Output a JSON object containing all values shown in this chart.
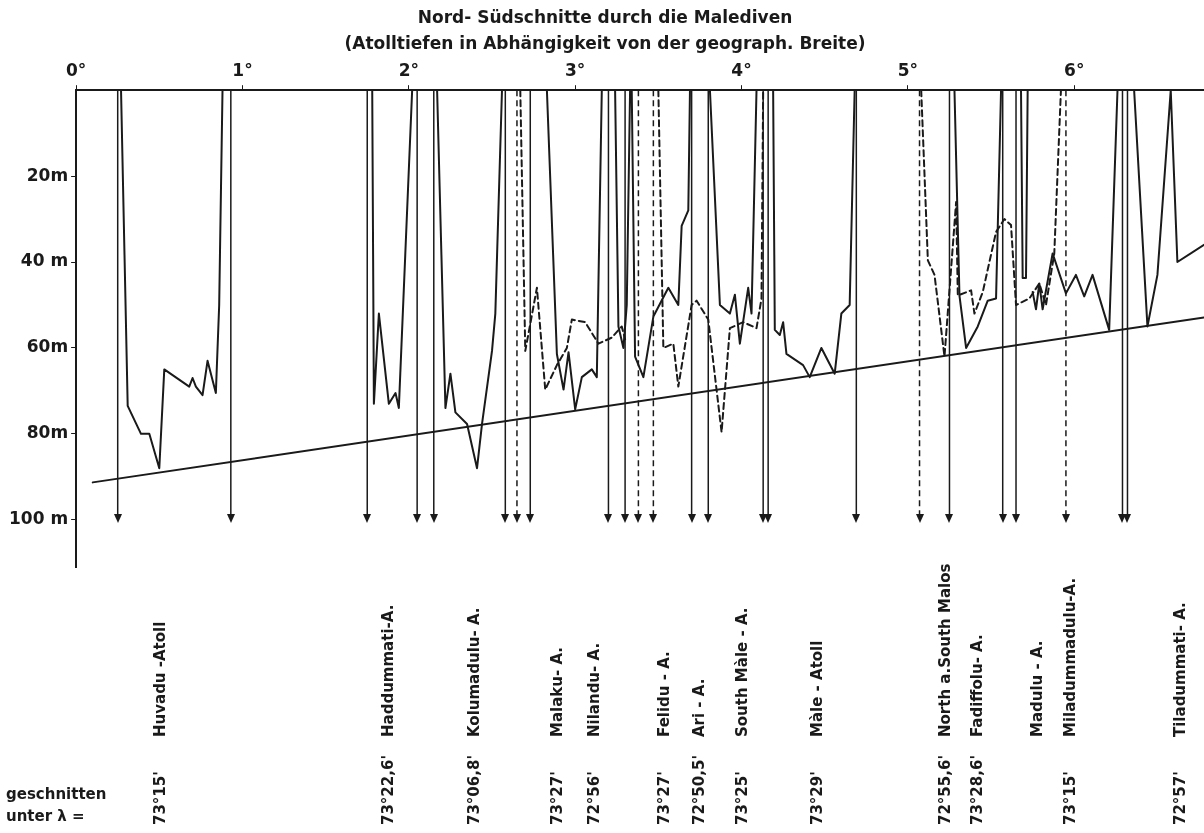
{
  "chart_data": {
    "type": "line",
    "title": "Nord- Südschnitte durch die Malediven",
    "subtitle": "(Atolltiefen in Abhängigkeit von der geograph. Breite)",
    "xlim": [
      0,
      6.78
    ],
    "xticks": [
      {
        "value": 0,
        "label": "0°"
      },
      {
        "value": 1,
        "label": "1°"
      },
      {
        "value": 2,
        "label": "2°"
      },
      {
        "value": 3,
        "label": "3°"
      },
      {
        "value": 4,
        "label": "4°"
      },
      {
        "value": 5,
        "label": "5°"
      },
      {
        "value": 6,
        "label": "6°"
      }
    ],
    "ylim": [
      111,
      0
    ],
    "yticks": [
      {
        "value": 20,
        "label": "20m"
      },
      {
        "value": 40,
        "label": "40 m"
      },
      {
        "value": 60,
        "label": "60m"
      },
      {
        "value": 80,
        "label": "80m"
      },
      {
        "value": 100,
        "label": "100 m"
      }
    ],
    "grid": false,
    "legend": false,
    "marker": "none",
    "series": [
      {
        "color": "#1a1a1a",
        "line_style": "solid",
        "x": [
          0.27,
          0.31,
          0.39,
          0.44,
          0.5,
          0.53,
          0.68,
          0.7,
          0.72,
          0.76,
          0.79,
          0.84,
          0.86,
          0.88,
          1.2,
          1.78,
          1.79,
          1.82,
          1.88,
          1.92,
          1.94,
          2.02,
          2.1,
          2.17,
          2.22,
          2.25,
          2.28,
          2.35,
          2.41,
          2.44,
          2.5,
          2.52,
          2.56,
          2.7,
          2.83,
          2.89,
          2.93,
          2.96,
          3.0,
          3.04,
          3.1,
          3.13,
          3.16,
          3.2,
          3.24,
          3.26,
          3.29,
          3.31,
          3.33,
          3.335,
          3.34,
          3.36,
          3.41,
          3.47,
          3.56,
          3.62,
          3.64,
          3.68,
          3.69,
          3.75,
          3.81,
          3.87,
          3.93,
          3.96,
          3.99,
          4.04,
          4.06,
          4.09,
          4.14,
          4.19,
          4.2,
          4.23,
          4.25,
          4.27,
          4.37,
          4.41,
          4.48,
          4.56,
          4.6,
          4.65,
          4.68,
          5.0,
          5.28,
          5.31,
          5.35,
          5.42,
          5.48,
          5.53,
          5.56,
          5.62,
          5.68,
          5.69,
          5.71,
          5.72,
          5.735,
          5.75,
          5.77,
          5.79,
          5.81,
          5.87,
          5.95,
          6.01,
          6.06,
          6.11,
          6.21,
          6.26,
          6.3,
          6.36,
          6.44,
          6.5,
          6.58,
          6.62,
          6.78
        ],
        "values": [
          0,
          73.5,
          80,
          80,
          88,
          65,
          69,
          67,
          69,
          71,
          63,
          70.5,
          50,
          0,
          null,
          0,
          73,
          52,
          73,
          70.5,
          74,
          0,
          null,
          0,
          74,
          66,
          75,
          77.7,
          88,
          77.7,
          60.7,
          52,
          0,
          null,
          0,
          61.4,
          69.7,
          61,
          74.3,
          66.8,
          65,
          66.8,
          0,
          null,
          0,
          55,
          60,
          50,
          0,
          null,
          0,
          62,
          66.8,
          52.7,
          46,
          50,
          31.6,
          28,
          0,
          null,
          0,
          50,
          52,
          47.6,
          59,
          46,
          52,
          0,
          null,
          0,
          55.8,
          57,
          54,
          61.4,
          64,
          66.8,
          60,
          66,
          52,
          50,
          0,
          null,
          0,
          47.8,
          60,
          55,
          49,
          48.5,
          0,
          null,
          0,
          43.7,
          43.7,
          0,
          null,
          47,
          51,
          45,
          51,
          38,
          47.3,
          43,
          48,
          43,
          55.8,
          0,
          null,
          0,
          55,
          43,
          0,
          40,
          36
        ]
      },
      {
        "color": "#1a1a1a",
        "line_style": "dashed",
        "x": [
          2.67,
          2.7,
          2.77,
          2.82,
          2.89,
          2.95,
          2.98,
          3.06,
          3.14,
          3.22,
          3.28,
          3.3,
          3.4,
          3.5,
          3.53,
          3.59,
          3.62,
          3.7,
          3.73,
          3.8,
          3.88,
          3.93,
          4.01,
          4.09,
          4.12,
          4.13,
          4.6,
          5.08,
          5.12,
          5.16,
          5.22,
          5.29,
          5.3,
          5.38,
          5.4,
          5.45,
          5.53,
          5.58,
          5.62,
          5.65,
          5.73,
          5.79,
          5.83,
          5.88,
          5.92
        ],
        "values": [
          0,
          60.7,
          46,
          69.7,
          64,
          60,
          53.4,
          54,
          59,
          57.6,
          55,
          58,
          null,
          0,
          60,
          59,
          69,
          50,
          49,
          53.4,
          79.6,
          55.4,
          54,
          55.4,
          48.5,
          0,
          null,
          0,
          39.6,
          43,
          62,
          26,
          47.8,
          46.6,
          52,
          47,
          33,
          30,
          31.4,
          50,
          48.5,
          45,
          50,
          38,
          0
        ]
      },
      {
        "color": "#1a1a1a",
        "line_style": "solid",
        "x": [
          0.1,
          6.78
        ],
        "values": [
          91.3,
          52.9
        ]
      }
    ],
    "ref_lines": [
      {
        "axis": "x",
        "value": 0.25
      },
      {
        "axis": "x",
        "value": 0.93
      },
      {
        "axis": "x",
        "value": 1.75
      },
      {
        "axis": "x",
        "value": 2.05
      },
      {
        "axis": "x",
        "value": 2.15
      },
      {
        "axis": "x",
        "value": 2.58
      },
      {
        "axis": "x",
        "value": 2.65,
        "line_style": "dashed"
      },
      {
        "axis": "x",
        "value": 2.73
      },
      {
        "axis": "x",
        "value": 3.2
      },
      {
        "axis": "x",
        "value": 3.3
      },
      {
        "axis": "x",
        "value": 3.38,
        "line_style": "dashed"
      },
      {
        "axis": "x",
        "value": 3.47,
        "line_style": "dashed"
      },
      {
        "axis": "x",
        "value": 3.7
      },
      {
        "axis": "x",
        "value": 3.8
      },
      {
        "axis": "x",
        "value": 4.13
      },
      {
        "axis": "x",
        "value": 4.16
      },
      {
        "axis": "x",
        "value": 4.69
      },
      {
        "axis": "x",
        "value": 5.07,
        "line_style": "dashed"
      },
      {
        "axis": "x",
        "value": 5.25
      },
      {
        "axis": "x",
        "value": 5.57
      },
      {
        "axis": "x",
        "value": 5.65
      },
      {
        "axis": "x",
        "value": 5.95,
        "line_style": "dashed"
      },
      {
        "axis": "x",
        "value": 6.29
      },
      {
        "axis": "x",
        "value": 6.32
      }
    ],
    "annotations": [
      "geschnitten unter λ =",
      "73°15'",
      "Huvadu -Atoll",
      "73°22,6'",
      "Haddummati-A.",
      "73°06,8'",
      "Kolumadulu- A.",
      "73°27'",
      "Malaku- A.",
      "72°56'",
      "Nilandu- A.",
      "73°27'",
      "Felidu - A.",
      "72°50,5'",
      "Ari - A.",
      "73°25'",
      "South Màle - A.",
      "73°29'",
      "Màle - Atoll",
      "72°55,6'",
      "North a.South Malos",
      "73°28,6'",
      "Fadiffolu- A.",
      "Madulu - A.",
      "73°15'",
      "Miladummadulu-A.",
      "72°57'",
      "Tiladummati- A."
    ]
  }
}
